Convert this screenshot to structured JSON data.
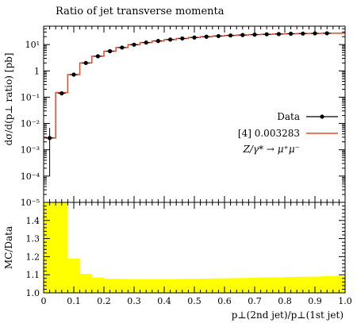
{
  "chart_data": [
    {
      "type": "line",
      "title": "Ratio of jet transverse momenta",
      "ylabel": "dσ/d(p⊥ ratio) [pb]",
      "yscale": "log",
      "xlim": [
        0.0,
        1.0
      ],
      "ylim": [
        1e-05,
        50
      ],
      "y_tick_labels": [
        "10⁻⁵",
        "10⁻⁴",
        "10⁻³",
        "10⁻²",
        "10⁻¹",
        "1",
        "10¹"
      ],
      "bin_edges": [
        0.0,
        0.04,
        0.08,
        0.12,
        0.16,
        0.2,
        0.24,
        0.28,
        0.32,
        0.36,
        0.4,
        0.44,
        0.48,
        0.52,
        0.56,
        0.6,
        0.64,
        0.68,
        0.72,
        0.76,
        0.8,
        0.84,
        0.88,
        0.92,
        0.96,
        1.0
      ],
      "legend_position": "right",
      "series": [
        {
          "name": "Data",
          "marker": "dot-with-errorbar",
          "x": [
            0.02,
            0.06,
            0.1,
            0.14,
            0.18,
            0.22,
            0.26,
            0.3,
            0.34,
            0.38,
            0.42,
            0.46,
            0.5,
            0.54,
            0.58,
            0.62,
            0.66,
            0.7,
            0.74,
            0.78,
            0.82,
            0.86,
            0.9,
            0.94
          ],
          "y": [
            0.0028,
            0.14,
            0.72,
            2.0,
            3.6,
            5.6,
            7.7,
            9.9,
            11.9,
            13.7,
            15.5,
            17.1,
            18.6,
            19.9,
            21.1,
            22.2,
            23.1,
            23.9,
            24.6,
            25.2,
            25.8,
            26.2,
            26.6,
            26.9
          ],
          "y_err_low": [
            0.0027,
            0.01,
            0.03,
            0.05,
            0.08,
            0.1,
            0.1,
            0.1,
            0.1,
            0.1,
            0.1,
            0.1,
            0.1,
            0.1,
            0.1,
            0.1,
            0.1,
            0.1,
            0.1,
            0.1,
            0.1,
            0.1,
            0.1,
            0.1
          ],
          "y_err_high": [
            0.004,
            0.01,
            0.03,
            0.05,
            0.08,
            0.1,
            0.1,
            0.1,
            0.1,
            0.1,
            0.1,
            0.1,
            0.1,
            0.1,
            0.1,
            0.1,
            0.1,
            0.1,
            0.1,
            0.1,
            0.1,
            0.1,
            0.1,
            0.1
          ],
          "color": "#000000"
        },
        {
          "name": "[4] 0.003283",
          "style": "step",
          "y": [
            0.0028,
            0.15,
            0.72,
            2.0,
            3.6,
            5.6,
            7.7,
            9.9,
            11.9,
            13.7,
            15.5,
            17.1,
            18.6,
            19.9,
            21.1,
            22.2,
            23.1,
            23.9,
            24.6,
            25.2,
            25.8,
            26.2,
            26.6,
            26.9,
            27.1
          ],
          "color": "#e34a2c"
        }
      ],
      "legend_note": "Z/γ* → μ⁺μ⁻"
    },
    {
      "type": "area",
      "ylabel": "MC/Data",
      "xlabel": "p⊥(2nd jet)/p⊥(1st jet)",
      "xlim": [
        0.0,
        1.0
      ],
      "ylim": [
        1.0,
        1.5
      ],
      "x_ticks": [
        0.0,
        0.1,
        0.2,
        0.3,
        0.4,
        0.5,
        0.6,
        0.7,
        0.8,
        0.9,
        1.0
      ],
      "x_tick_labels": [
        "0",
        "0.1",
        "0.2",
        "0.3",
        "0.4",
        "0.5",
        "0.6",
        "0.7",
        "0.8",
        "0.9",
        "1.0"
      ],
      "y_ticks": [
        1.0,
        1.1,
        1.2,
        1.3,
        1.4
      ],
      "y_tick_labels": [
        "1.0",
        "1.1",
        "1.2",
        "1.3",
        "1.4"
      ],
      "bin_edges": [
        0.0,
        0.04,
        0.08,
        0.12,
        0.16,
        0.2,
        0.24,
        0.28,
        0.32,
        0.36,
        0.4,
        0.44,
        0.48,
        0.52,
        0.56,
        0.6,
        0.64,
        0.68,
        0.72,
        0.76,
        0.8,
        0.84,
        0.88,
        0.92,
        0.96,
        1.0
      ],
      "band_upper": [
        1.5,
        1.5,
        1.19,
        1.105,
        1.085,
        1.078,
        1.077,
        1.076,
        1.076,
        1.076,
        1.076,
        1.077,
        1.078,
        1.079,
        1.08,
        1.081,
        1.082,
        1.083,
        1.085,
        1.086,
        1.088,
        1.089,
        1.09,
        1.092,
        1.094
      ],
      "band_lower": [
        1.0,
        1.0,
        1.0,
        1.0,
        1.0,
        1.0,
        1.0,
        1.0,
        1.0,
        1.0,
        1.0,
        1.0,
        1.0,
        1.0,
        1.0,
        1.0,
        1.0,
        1.0,
        1.0,
        1.0,
        1.0,
        1.0,
        1.0,
        1.0,
        1.0
      ],
      "band_color": "#ffff00"
    }
  ]
}
